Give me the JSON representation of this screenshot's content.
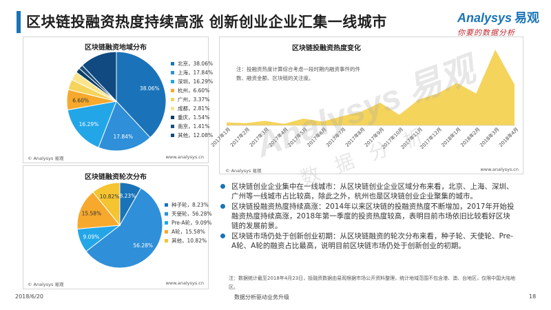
{
  "page": {
    "title": "区块链投融资热度持续高涨 创新创业企业汇集一线城市",
    "logo_text": "Analysys",
    "logo_cn": "易观",
    "logo_slogan": "你要的数据分析",
    "date": "2018/6/20",
    "center_footer": "数据分析驱动业务升级",
    "page_number": "18",
    "watermark": "Analysys 易观",
    "watermark_cn": "数 据 分 析",
    "colors": {
      "accent": "#1a73b8",
      "area": "#f5d45c",
      "orange": "#f7a92d"
    }
  },
  "panels": {
    "region": {
      "title": "区块链融资地域分布",
      "source": "© Analysys 易观",
      "website": "www.analysys.cn"
    },
    "heat": {
      "title": "区块链投融资热度变化",
      "note": "注：投融资热度计算综合考虑一段时期内融资事件的件数、融资金额、区块链的关注度。",
      "source": "© Analysys 易观",
      "website": "www.analysys.cn"
    },
    "round": {
      "title": "区块链融资轮次分布",
      "source": "© Analysys 易观",
      "website": "www.analysys.cn"
    }
  },
  "chart_data": [
    {
      "type": "pie",
      "title": "区块链融资地域分布",
      "categories": [
        "北京",
        "上海",
        "深圳",
        "杭州",
        "广州",
        "成都",
        "重庆",
        "南京",
        "其他"
      ],
      "values": [
        38.06,
        17.84,
        16.29,
        6.6,
        3.37,
        2.81,
        1.54,
        1.41,
        12.08
      ],
      "legend_labels": [
        "北京，38.06%",
        "上海，17.84%",
        "深圳，16.29%",
        "杭州，6.60%",
        "广州，3.37%",
        "成都，2.81%",
        "重庆，1.54%",
        "南京，1.41%",
        "其他，12.08%"
      ],
      "data_labels": [
        "38.06%",
        "17.84%",
        "16.29%",
        "6.60%",
        "",
        "",
        "",
        "",
        ""
      ],
      "colors": [
        "#1a73b8",
        "#2f8fd8",
        "#23a6e8",
        "#f7a92d",
        "#f5d45c",
        "#fbe58c",
        "#0c3d63",
        "#1b4f7d",
        "#104a80"
      ],
      "legend_position": "right"
    },
    {
      "type": "area",
      "title": "区块链投融资热度变化",
      "categories": [
        "2017年1月",
        "2017年2月",
        "2017年3月",
        "2017年4月",
        "2017年5月",
        "2017年6月",
        "2017年7月",
        "2017年8月",
        "2017年9月",
        "2017年10月",
        "2017年11月",
        "2017年12月",
        "2018年1月",
        "2018年2月",
        "2018年3月",
        "2018年4月"
      ],
      "values": [
        4,
        3,
        6,
        2,
        9,
        5,
        12,
        18,
        30,
        14,
        34,
        42,
        56,
        42,
        100,
        54
      ],
      "color": "#f5d45c",
      "axis_visible": false
    },
    {
      "type": "pie",
      "title": "区块链融资轮次分布",
      "categories": [
        "种子轮",
        "天使轮",
        "Pre-A轮",
        "A轮",
        "其他"
      ],
      "values": [
        8.23,
        56.28,
        9.09,
        15.58,
        10.82
      ],
      "legend_labels": [
        "种子轮，8.23%",
        "天使轮，56.28%",
        "Pre-A轮，9.09%",
        "A轮，15.58%",
        "其他，10.82%"
      ],
      "data_labels": [
        "8.23%",
        "56.28%",
        "9.09%",
        "15.58%",
        "10.82%"
      ],
      "colors": [
        "#1a73b8",
        "#2f8fd8",
        "#23a6e8",
        "#f7a92d",
        "#f5c431"
      ],
      "legend_position": "right"
    }
  ],
  "bullets": [
    "区块链创业企业集中在一线城市：从区块链创业企业区域分布来看，北京、上海、深圳、广州等一线城市占比较高，除此之外，杭州也是区块链创业企业聚集的城市。",
    "区块链投融资热度持续高涨：2014年以来区块链的投融资热度不断增加，2017年开始投融资热度持续高涨，2018年第一季度的投资热度较高，表明目前市场依旧比较看好区块链的发展前景。",
    "区块链市场仍处于创新创业初期：从区块链融资的轮次分布来看，种子轮、天使轮、Pre-A轮、A轮的融资占比最高，说明目前区块链市场仍处于创新创业的初期。"
  ],
  "bottom_note": "注：数据统计截至2018年4月23日，投融资数据由易观根据市场公开资料整理，统计地域范围不包含港、澳、台地区，仅限中国大陆地区。"
}
